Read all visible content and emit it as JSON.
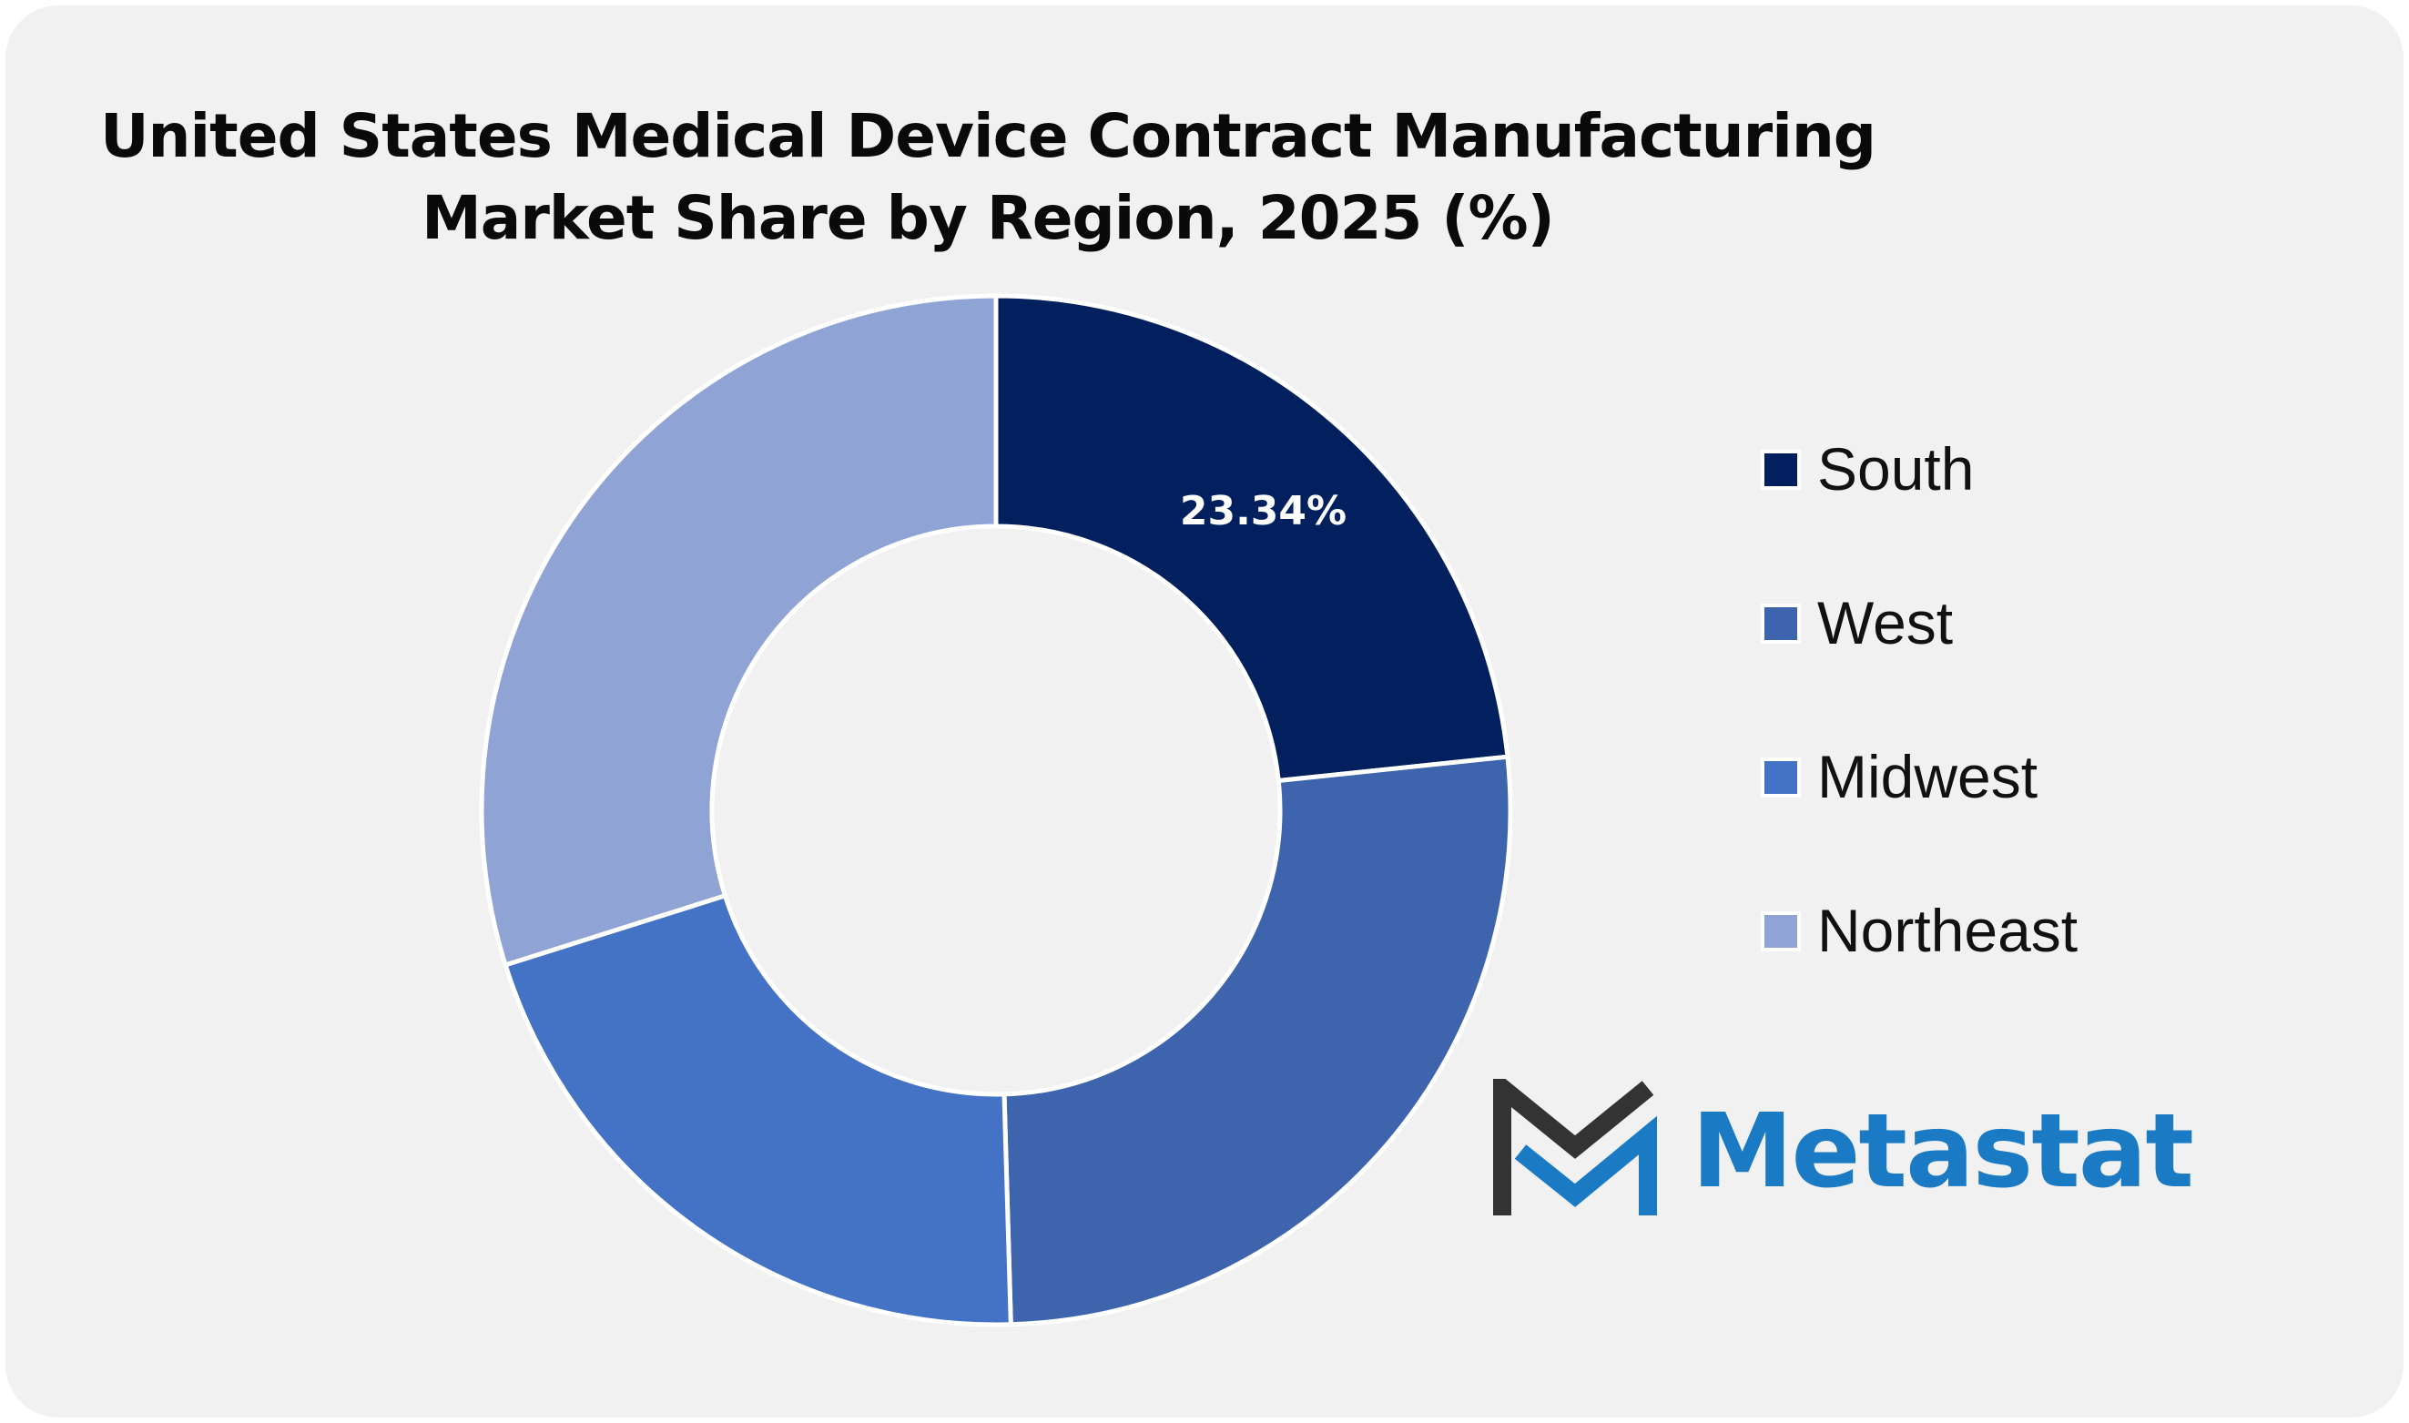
{
  "title": {
    "line1": "United States Medical Device Contract Manufacturing",
    "line2": "Market Share by Region, 2025 (%)"
  },
  "chart_data": {
    "type": "pie",
    "title": "United States Medical Device Contract Manufacturing Market Share by Region, 2025 (%)",
    "categories": [
      "South",
      "West",
      "Midwest",
      "Northeast"
    ],
    "values": [
      23.34,
      26.2,
      20.6,
      29.86
    ],
    "colors": [
      "#03205e",
      "#3d64ad",
      "#4472c4",
      "#8fa3d5"
    ],
    "data_labels": [
      "23.34%",
      "",
      "",
      ""
    ],
    "donut": true,
    "legend": "right"
  },
  "legend": {
    "items": [
      {
        "label": "South",
        "color": "#03205e"
      },
      {
        "label": "West",
        "color": "#3d64ad"
      },
      {
        "label": "Midwest",
        "color": "#4472c4"
      },
      {
        "label": "Northeast",
        "color": "#8fa3d5"
      }
    ]
  },
  "logo": {
    "text": "Metastat",
    "icon": "metastat-logo-icon",
    "dark_color": "#333333",
    "brand_color": "#1a7ac4"
  }
}
